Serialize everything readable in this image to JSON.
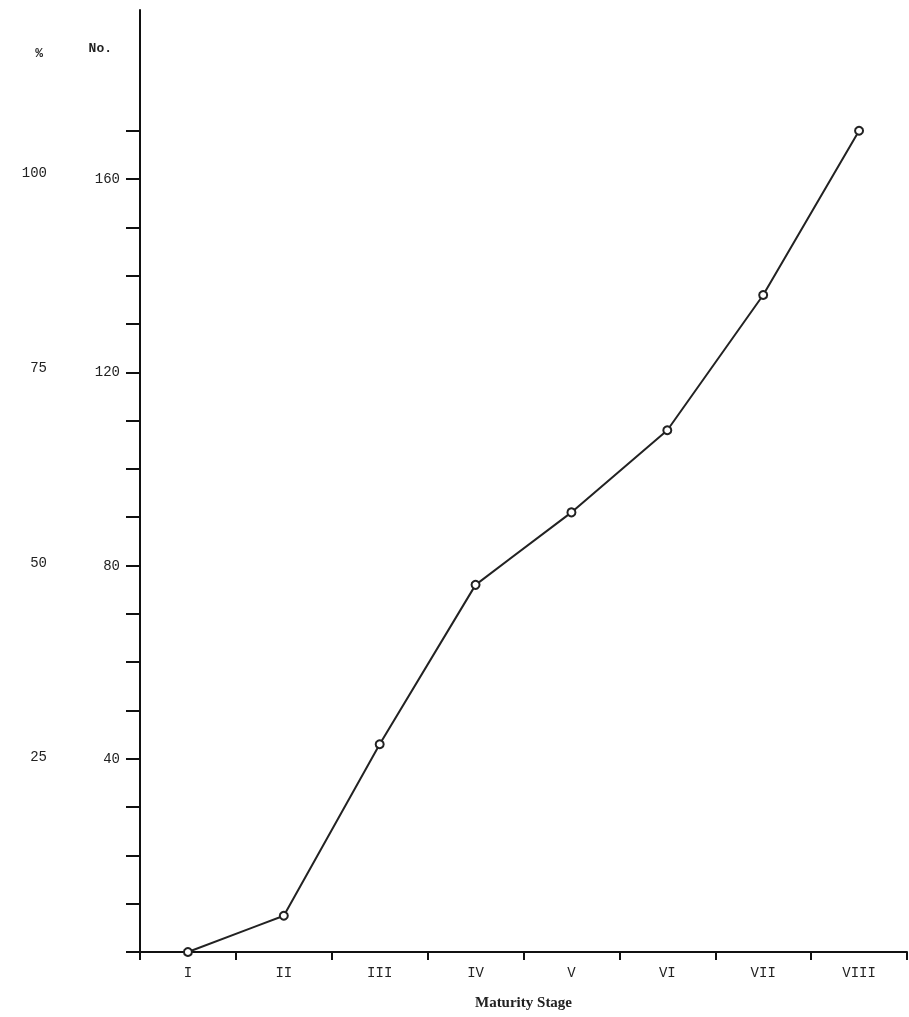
{
  "chart_data": {
    "type": "line",
    "xlabel": "Maturity Stage",
    "ylabel": "No.",
    "y2label": "%",
    "categories": [
      "I",
      "II",
      "III",
      "IV",
      "V",
      "VI",
      "VII",
      "VIII"
    ],
    "series": [
      {
        "color": "#222222",
        "values": [
          0,
          7.5,
          43,
          76,
          91,
          108,
          136,
          170
        ]
      }
    ],
    "ylim": [
      0,
      195
    ],
    "yticks": [
      {
        "value": 0,
        "label": null
      },
      {
        "value": 10,
        "label": null
      },
      {
        "value": 20,
        "label": null
      },
      {
        "value": 30,
        "label": null
      },
      40,
      {
        "value": 50,
        "label": null
      },
      {
        "value": 60,
        "label": null
      },
      {
        "value": 70,
        "label": null
      },
      80,
      {
        "value": 90,
        "label": null
      },
      {
        "value": 100,
        "label": null
      },
      {
        "value": 110,
        "label": null
      },
      120,
      {
        "value": 130,
        "label": null
      },
      {
        "value": 140,
        "label": null
      },
      {
        "value": 150,
        "label": null
      },
      160,
      {
        "value": 170,
        "label": null
      }
    ],
    "y2lim": [
      0,
      121
    ],
    "y2ticks": [
      25,
      50,
      75,
      100
    ],
    "marker": "circle",
    "line_style": "solid",
    "grid": false
  }
}
